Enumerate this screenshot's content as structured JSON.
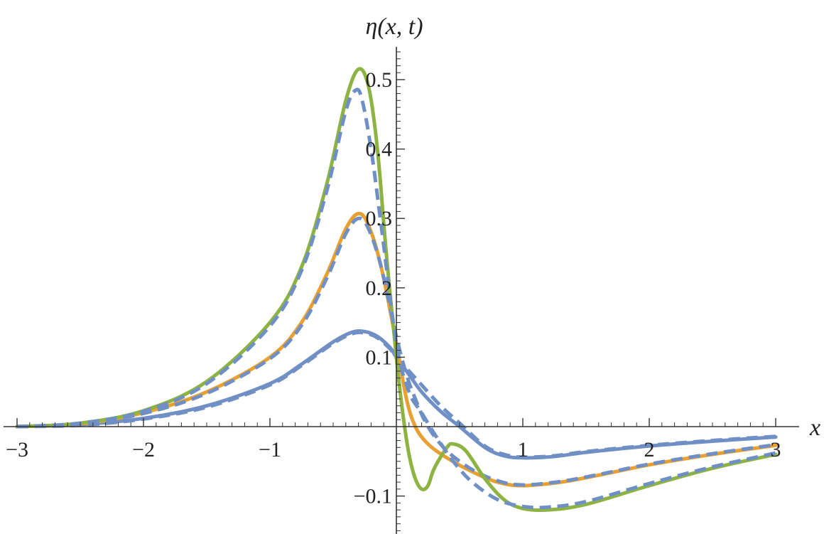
{
  "chart_data": {
    "type": "line",
    "ylabel": "η(x, t)",
    "xlabel": "x",
    "xlim": [
      -3,
      3
    ],
    "ylim": [
      -0.16,
      0.55
    ],
    "x_ticks": [
      -3,
      -2,
      -1,
      1,
      2,
      3
    ],
    "x_tick_labels": [
      "−3",
      "−2",
      "−1",
      "1",
      "2",
      "3"
    ],
    "y_ticks": [
      -0.1,
      0.1,
      0.2,
      0.3,
      0.4,
      0.5
    ],
    "y_tick_labels": [
      "−0.1",
      "0.1",
      "0.2",
      "0.3",
      "0.4",
      "0.5"
    ],
    "grid": false,
    "series": [
      {
        "color": "#6f8fc5",
        "style": "solid",
        "points": [
          [
            -3,
            0
          ],
          [
            -2.5,
            0.003
          ],
          [
            -2,
            0.012
          ],
          [
            -1.5,
            0.03
          ],
          [
            -1,
            0.062
          ],
          [
            -0.75,
            0.09
          ],
          [
            -0.5,
            0.122
          ],
          [
            -0.35,
            0.136
          ],
          [
            -0.25,
            0.137
          ],
          [
            -0.15,
            0.13
          ],
          [
            -0.05,
            0.114
          ],
          [
            0,
            0.1
          ],
          [
            0.1,
            0.075
          ],
          [
            0.2,
            0.05
          ],
          [
            0.35,
            0.022
          ],
          [
            0.5,
            0.0
          ],
          [
            0.7,
            -0.03
          ],
          [
            0.85,
            -0.042
          ],
          [
            1,
            -0.045
          ],
          [
            1.25,
            -0.043
          ],
          [
            1.5,
            -0.037
          ],
          [
            2,
            -0.028
          ],
          [
            2.5,
            -0.021
          ],
          [
            3,
            -0.015
          ]
        ]
      },
      {
        "color": "#6f8fc5",
        "style": "dashed",
        "points": [
          [
            -3,
            0
          ],
          [
            -2.5,
            0.002
          ],
          [
            -2,
            0.011
          ],
          [
            -1.5,
            0.028
          ],
          [
            -1,
            0.06
          ],
          [
            -0.75,
            0.088
          ],
          [
            -0.5,
            0.12
          ],
          [
            -0.35,
            0.134
          ],
          [
            -0.25,
            0.135
          ],
          [
            -0.15,
            0.128
          ],
          [
            -0.05,
            0.112
          ],
          [
            0,
            0.099
          ],
          [
            0.1,
            0.08
          ],
          [
            0.2,
            0.06
          ],
          [
            0.35,
            0.03
          ],
          [
            0.5,
            0.005
          ],
          [
            0.7,
            -0.028
          ],
          [
            0.85,
            -0.04
          ],
          [
            1,
            -0.044
          ],
          [
            1.25,
            -0.042
          ],
          [
            1.5,
            -0.036
          ],
          [
            2,
            -0.027
          ],
          [
            2.5,
            -0.02
          ],
          [
            3,
            -0.014
          ]
        ]
      },
      {
        "color": "#e8a033",
        "style": "solid",
        "points": [
          [
            -3,
            0
          ],
          [
            -2.5,
            0.004
          ],
          [
            -2,
            0.02
          ],
          [
            -1.5,
            0.05
          ],
          [
            -1,
            0.1
          ],
          [
            -0.75,
            0.15
          ],
          [
            -0.55,
            0.22
          ],
          [
            -0.4,
            0.285
          ],
          [
            -0.3,
            0.307
          ],
          [
            -0.22,
            0.29
          ],
          [
            -0.12,
            0.23
          ],
          [
            0,
            0.12
          ],
          [
            0.08,
            0.04
          ],
          [
            0.15,
            0.0
          ],
          [
            0.25,
            -0.025
          ],
          [
            0.4,
            -0.045
          ],
          [
            0.6,
            -0.065
          ],
          [
            0.8,
            -0.08
          ],
          [
            1,
            -0.085
          ],
          [
            1.3,
            -0.08
          ],
          [
            1.6,
            -0.07
          ],
          [
            2,
            -0.055
          ],
          [
            2.5,
            -0.04
          ],
          [
            3,
            -0.027
          ]
        ]
      },
      {
        "color": "#6f8fc5",
        "style": "dashed",
        "points": [
          [
            -3,
            0
          ],
          [
            -2.5,
            0.004
          ],
          [
            -2,
            0.019
          ],
          [
            -1.5,
            0.048
          ],
          [
            -1,
            0.098
          ],
          [
            -0.75,
            0.146
          ],
          [
            -0.55,
            0.214
          ],
          [
            -0.4,
            0.278
          ],
          [
            -0.3,
            0.3
          ],
          [
            -0.22,
            0.285
          ],
          [
            -0.12,
            0.23
          ],
          [
            0,
            0.13
          ],
          [
            0.08,
            0.075
          ],
          [
            0.15,
            0.04
          ],
          [
            0.25,
            0.0
          ],
          [
            0.4,
            -0.035
          ],
          [
            0.6,
            -0.062
          ],
          [
            0.8,
            -0.078
          ],
          [
            1,
            -0.084
          ],
          [
            1.3,
            -0.079
          ],
          [
            1.6,
            -0.069
          ],
          [
            2,
            -0.054
          ],
          [
            2.5,
            -0.039
          ],
          [
            3,
            -0.026
          ]
        ]
      },
      {
        "color": "#8db443",
        "style": "solid",
        "points": [
          [
            -3,
            0
          ],
          [
            -2.5,
            0.005
          ],
          [
            -2,
            0.023
          ],
          [
            -1.5,
            0.065
          ],
          [
            -1,
            0.15
          ],
          [
            -0.75,
            0.23
          ],
          [
            -0.55,
            0.35
          ],
          [
            -0.4,
            0.47
          ],
          [
            -0.3,
            0.515
          ],
          [
            -0.22,
            0.49
          ],
          [
            -0.15,
            0.4
          ],
          [
            -0.08,
            0.25
          ],
          [
            0,
            0.1
          ],
          [
            0.05,
            0.02
          ],
          [
            0.1,
            -0.04
          ],
          [
            0.15,
            -0.075
          ],
          [
            0.2,
            -0.09
          ],
          [
            0.25,
            -0.085
          ],
          [
            0.3,
            -0.06
          ],
          [
            0.4,
            -0.03
          ],
          [
            0.45,
            -0.025
          ],
          [
            0.55,
            -0.035
          ],
          [
            0.7,
            -0.075
          ],
          [
            0.85,
            -0.105
          ],
          [
            1,
            -0.118
          ],
          [
            1.2,
            -0.12
          ],
          [
            1.5,
            -0.112
          ],
          [
            2,
            -0.085
          ],
          [
            2.5,
            -0.06
          ],
          [
            3,
            -0.04
          ]
        ]
      },
      {
        "color": "#6f8fc5",
        "style": "dashed",
        "points": [
          [
            -3,
            0
          ],
          [
            -2.5,
            0.005
          ],
          [
            -2,
            0.022
          ],
          [
            -1.5,
            0.062
          ],
          [
            -1,
            0.145
          ],
          [
            -0.75,
            0.225
          ],
          [
            -0.55,
            0.34
          ],
          [
            -0.4,
            0.455
          ],
          [
            -0.32,
            0.485
          ],
          [
            -0.27,
            0.47
          ],
          [
            -0.2,
            0.4
          ],
          [
            -0.12,
            0.29
          ],
          [
            0,
            0.12
          ],
          [
            0.1,
            0.05
          ],
          [
            0.2,
            0.02
          ],
          [
            0.3,
            -0.01
          ],
          [
            0.45,
            -0.05
          ],
          [
            0.6,
            -0.08
          ],
          [
            0.8,
            -0.105
          ],
          [
            1,
            -0.115
          ],
          [
            1.2,
            -0.116
          ],
          [
            1.5,
            -0.108
          ],
          [
            2,
            -0.082
          ],
          [
            2.5,
            -0.058
          ],
          [
            3,
            -0.038
          ]
        ]
      }
    ]
  }
}
